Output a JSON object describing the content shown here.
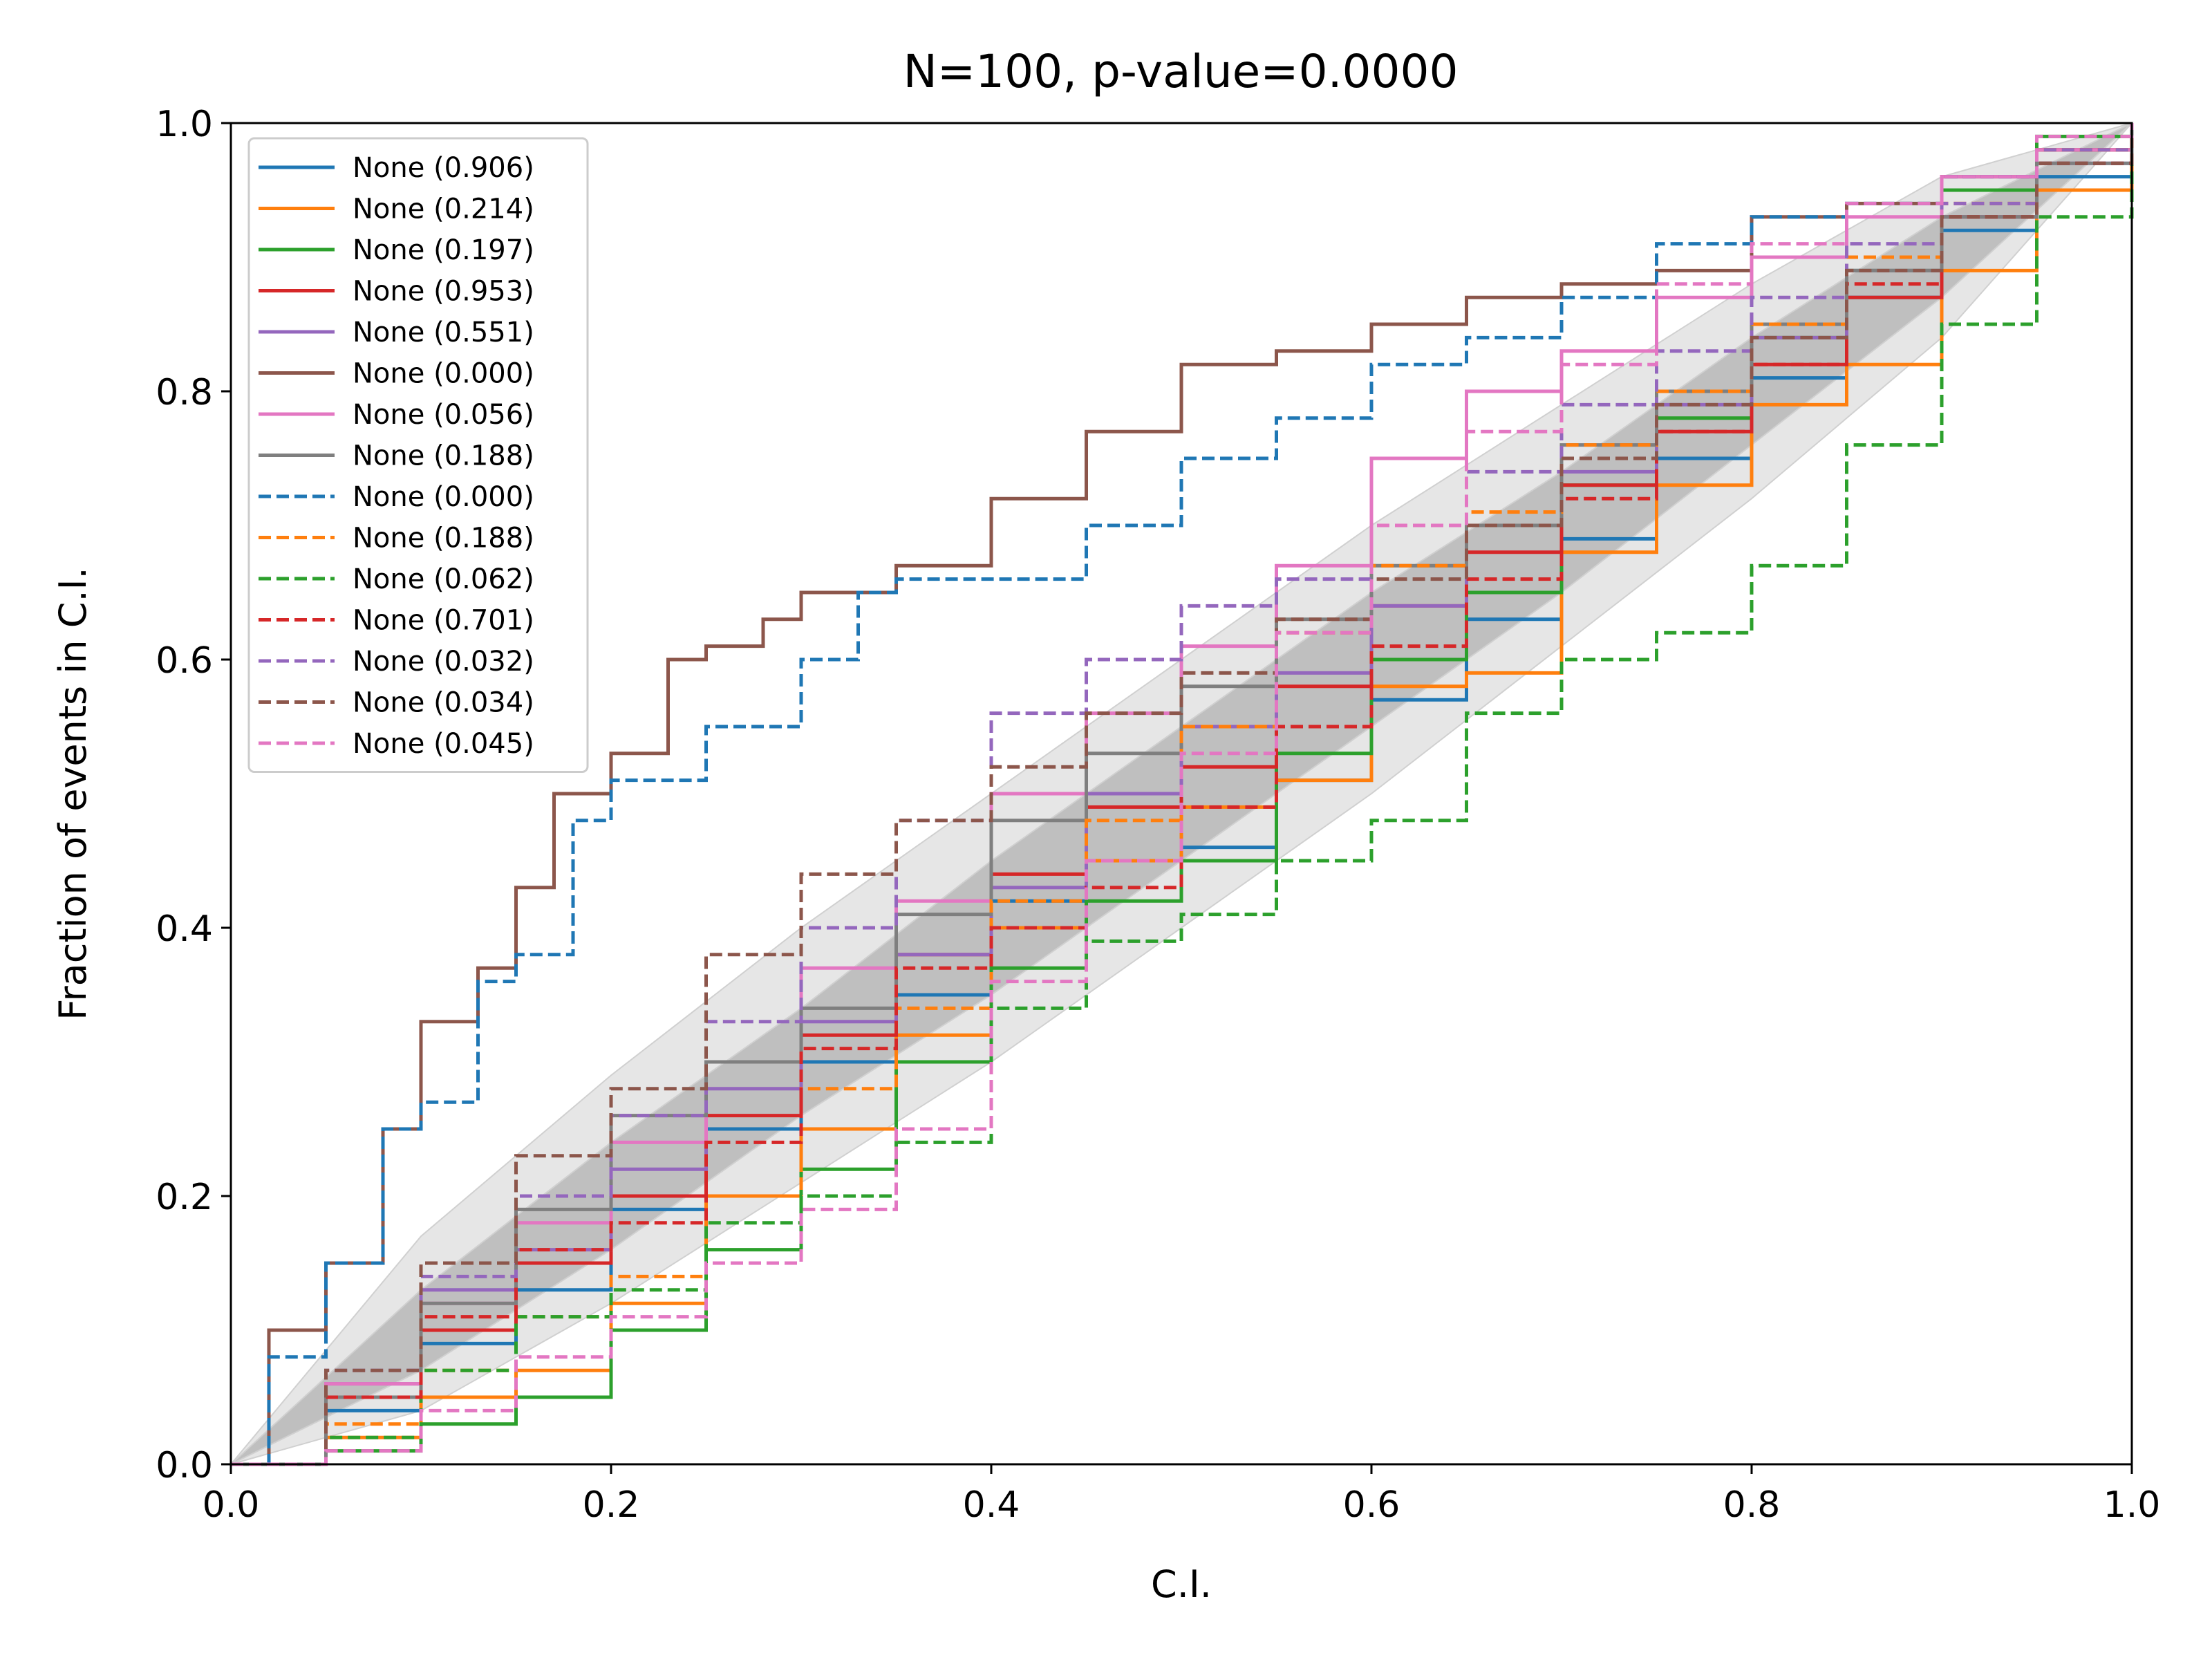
{
  "chart_data": {
    "type": "line",
    "title": "N=100, p-value=0.0000",
    "xlabel": "C.I.",
    "ylabel": "Fraction of events in C.I.",
    "xlim": [
      0,
      1
    ],
    "ylim": [
      0,
      1
    ],
    "xticks": [
      "0.0",
      "0.2",
      "0.4",
      "0.6",
      "0.8",
      "1.0"
    ],
    "yticks": [
      "0.0",
      "0.2",
      "0.4",
      "0.6",
      "0.8",
      "1.0"
    ],
    "grid": false,
    "legend_position": "upper-left",
    "bands": [
      {
        "level": "outer",
        "color": "#e6e6e6",
        "x": [
          0,
          0.1,
          0.2,
          0.3,
          0.4,
          0.5,
          0.6,
          0.7,
          0.8,
          0.9,
          1.0
        ],
        "lower": [
          0,
          0.04,
          0.12,
          0.21,
          0.3,
          0.4,
          0.5,
          0.61,
          0.72,
          0.84,
          1.0
        ],
        "upper": [
          0,
          0.17,
          0.29,
          0.4,
          0.5,
          0.6,
          0.7,
          0.79,
          0.88,
          0.96,
          1.0
        ]
      },
      {
        "level": "inner",
        "color": "#bfbfbf",
        "x": [
          0,
          0.1,
          0.2,
          0.3,
          0.4,
          0.5,
          0.6,
          0.7,
          0.8,
          0.9,
          1.0
        ],
        "lower": [
          0,
          0.07,
          0.16,
          0.26,
          0.35,
          0.45,
          0.55,
          0.65,
          0.76,
          0.87,
          1.0
        ],
        "upper": [
          0,
          0.13,
          0.24,
          0.34,
          0.45,
          0.55,
          0.65,
          0.74,
          0.84,
          0.93,
          1.0
        ]
      }
    ],
    "series": [
      {
        "name": "None (0.906)",
        "color": "#1f77b4",
        "dash": "solid",
        "x": [
          0,
          0.05,
          0.1,
          0.15,
          0.2,
          0.25,
          0.3,
          0.35,
          0.4,
          0.45,
          0.5,
          0.55,
          0.6,
          0.65,
          0.7,
          0.75,
          0.8,
          0.85,
          0.9,
          0.95,
          1.0
        ],
        "y": [
          0,
          0.04,
          0.09,
          0.13,
          0.19,
          0.25,
          0.3,
          0.35,
          0.42,
          0.45,
          0.46,
          0.51,
          0.57,
          0.63,
          0.69,
          0.75,
          0.81,
          0.87,
          0.92,
          0.96,
          1.0
        ]
      },
      {
        "name": "None (0.214)",
        "color": "#ff7f0e",
        "dash": "solid",
        "x": [
          0,
          0.05,
          0.1,
          0.15,
          0.2,
          0.25,
          0.3,
          0.35,
          0.4,
          0.45,
          0.5,
          0.55,
          0.6,
          0.65,
          0.7,
          0.75,
          0.8,
          0.85,
          0.9,
          0.95,
          1.0
        ],
        "y": [
          0,
          0.02,
          0.05,
          0.07,
          0.12,
          0.2,
          0.25,
          0.32,
          0.4,
          0.45,
          0.49,
          0.51,
          0.58,
          0.59,
          0.68,
          0.73,
          0.79,
          0.82,
          0.89,
          0.95,
          1.0
        ]
      },
      {
        "name": "None (0.197)",
        "color": "#2ca02c",
        "dash": "solid",
        "x": [
          0,
          0.05,
          0.1,
          0.15,
          0.2,
          0.25,
          0.3,
          0.35,
          0.4,
          0.45,
          0.5,
          0.55,
          0.6,
          0.65,
          0.7,
          0.75,
          0.8,
          0.85,
          0.9,
          0.95,
          1.0
        ],
        "y": [
          0,
          0.01,
          0.03,
          0.05,
          0.1,
          0.16,
          0.22,
          0.3,
          0.37,
          0.42,
          0.45,
          0.53,
          0.6,
          0.65,
          0.73,
          0.78,
          0.84,
          0.89,
          0.95,
          0.99,
          1.0
        ]
      },
      {
        "name": "None (0.953)",
        "color": "#d62728",
        "dash": "solid",
        "x": [
          0,
          0.05,
          0.1,
          0.15,
          0.2,
          0.25,
          0.3,
          0.35,
          0.4,
          0.45,
          0.5,
          0.55,
          0.6,
          0.65,
          0.7,
          0.75,
          0.8,
          0.85,
          0.9,
          0.95,
          1.0
        ],
        "y": [
          0,
          0.05,
          0.1,
          0.15,
          0.2,
          0.26,
          0.32,
          0.38,
          0.44,
          0.49,
          0.52,
          0.58,
          0.64,
          0.68,
          0.73,
          0.77,
          0.82,
          0.87,
          0.93,
          0.98,
          1.0
        ]
      },
      {
        "name": "None (0.551)",
        "color": "#9467bd",
        "dash": "solid",
        "x": [
          0,
          0.05,
          0.1,
          0.15,
          0.2,
          0.25,
          0.3,
          0.35,
          0.4,
          0.45,
          0.5,
          0.55,
          0.6,
          0.65,
          0.7,
          0.75,
          0.8,
          0.85,
          0.9,
          0.95,
          1.0
        ],
        "y": [
          0,
          0.06,
          0.13,
          0.16,
          0.22,
          0.28,
          0.33,
          0.38,
          0.43,
          0.5,
          0.55,
          0.59,
          0.64,
          0.7,
          0.74,
          0.79,
          0.84,
          0.89,
          0.93,
          0.97,
          1.0
        ]
      },
      {
        "name": "None (0.000)",
        "color": "#8c564b",
        "dash": "solid",
        "x": [
          0,
          0.02,
          0.05,
          0.08,
          0.1,
          0.13,
          0.15,
          0.17,
          0.2,
          0.23,
          0.25,
          0.28,
          0.3,
          0.35,
          0.4,
          0.45,
          0.5,
          0.55,
          0.6,
          0.65,
          0.7,
          0.75,
          0.8,
          0.85,
          0.9,
          0.95,
          1.0
        ],
        "y": [
          0,
          0.1,
          0.15,
          0.25,
          0.33,
          0.37,
          0.43,
          0.5,
          0.53,
          0.6,
          0.61,
          0.63,
          0.65,
          0.67,
          0.72,
          0.77,
          0.82,
          0.83,
          0.85,
          0.87,
          0.88,
          0.89,
          0.93,
          0.94,
          0.96,
          0.98,
          1.0
        ]
      },
      {
        "name": "None (0.056)",
        "color": "#e377c2",
        "dash": "solid",
        "x": [
          0,
          0.05,
          0.1,
          0.15,
          0.2,
          0.25,
          0.3,
          0.35,
          0.4,
          0.45,
          0.5,
          0.55,
          0.6,
          0.65,
          0.7,
          0.75,
          0.8,
          0.85,
          0.9,
          0.95,
          1.0
        ],
        "y": [
          0,
          0.06,
          0.12,
          0.18,
          0.24,
          0.3,
          0.37,
          0.42,
          0.5,
          0.56,
          0.61,
          0.67,
          0.75,
          0.8,
          0.83,
          0.87,
          0.9,
          0.93,
          0.96,
          0.98,
          1.0
        ]
      },
      {
        "name": "None (0.188)",
        "color": "#7f7f7f",
        "dash": "solid",
        "x": [
          0,
          0.05,
          0.1,
          0.15,
          0.2,
          0.25,
          0.3,
          0.35,
          0.4,
          0.45,
          0.5,
          0.55,
          0.6,
          0.65,
          0.7,
          0.75,
          0.8,
          0.85,
          0.9,
          0.95,
          1.0
        ],
        "y": [
          0,
          0.05,
          0.12,
          0.19,
          0.26,
          0.3,
          0.34,
          0.41,
          0.48,
          0.53,
          0.58,
          0.63,
          0.67,
          0.7,
          0.76,
          0.8,
          0.85,
          0.89,
          0.93,
          0.97,
          1.0
        ]
      },
      {
        "name": "None (0.000)",
        "color": "#1f77b4",
        "dash": "dashed",
        "x": [
          0,
          0.02,
          0.05,
          0.08,
          0.1,
          0.13,
          0.15,
          0.18,
          0.2,
          0.25,
          0.3,
          0.33,
          0.35,
          0.4,
          0.45,
          0.5,
          0.55,
          0.6,
          0.65,
          0.7,
          0.75,
          0.8,
          0.85,
          0.9,
          0.95,
          1.0
        ],
        "y": [
          0,
          0.08,
          0.15,
          0.25,
          0.27,
          0.36,
          0.38,
          0.48,
          0.51,
          0.55,
          0.6,
          0.65,
          0.66,
          0.66,
          0.7,
          0.75,
          0.78,
          0.82,
          0.84,
          0.87,
          0.91,
          0.93,
          0.94,
          0.96,
          0.97,
          1.0
        ]
      },
      {
        "name": "None (0.188)",
        "color": "#ff7f0e",
        "dash": "dashed",
        "x": [
          0,
          0.05,
          0.1,
          0.15,
          0.2,
          0.25,
          0.3,
          0.35,
          0.4,
          0.45,
          0.5,
          0.55,
          0.6,
          0.65,
          0.7,
          0.75,
          0.8,
          0.85,
          0.9,
          0.95,
          1.0
        ],
        "y": [
          0,
          0.03,
          0.07,
          0.11,
          0.14,
          0.2,
          0.28,
          0.34,
          0.42,
          0.48,
          0.55,
          0.62,
          0.67,
          0.71,
          0.76,
          0.8,
          0.85,
          0.9,
          0.94,
          0.98,
          1.0
        ]
      },
      {
        "name": "None (0.062)",
        "color": "#2ca02c",
        "dash": "dashed",
        "x": [
          0,
          0.05,
          0.1,
          0.15,
          0.2,
          0.25,
          0.3,
          0.35,
          0.4,
          0.45,
          0.5,
          0.55,
          0.6,
          0.65,
          0.7,
          0.75,
          0.8,
          0.85,
          0.9,
          0.95,
          1.0
        ],
        "y": [
          0,
          0.02,
          0.07,
          0.11,
          0.13,
          0.18,
          0.2,
          0.24,
          0.34,
          0.39,
          0.41,
          0.45,
          0.48,
          0.56,
          0.6,
          0.62,
          0.67,
          0.76,
          0.85,
          0.93,
          1.0
        ]
      },
      {
        "name": "None (0.701)",
        "color": "#d62728",
        "dash": "dashed",
        "x": [
          0,
          0.05,
          0.1,
          0.15,
          0.2,
          0.25,
          0.3,
          0.35,
          0.4,
          0.45,
          0.5,
          0.55,
          0.6,
          0.65,
          0.7,
          0.75,
          0.8,
          0.85,
          0.9,
          0.95,
          1.0
        ],
        "y": [
          0,
          0.05,
          0.11,
          0.16,
          0.18,
          0.24,
          0.31,
          0.37,
          0.4,
          0.43,
          0.49,
          0.55,
          0.61,
          0.66,
          0.72,
          0.77,
          0.82,
          0.88,
          0.93,
          0.97,
          1.0
        ]
      },
      {
        "name": "None (0.032)",
        "color": "#9467bd",
        "dash": "dashed",
        "x": [
          0,
          0.05,
          0.1,
          0.15,
          0.2,
          0.25,
          0.3,
          0.35,
          0.4,
          0.45,
          0.5,
          0.55,
          0.6,
          0.65,
          0.7,
          0.75,
          0.8,
          0.85,
          0.9,
          0.95,
          1.0
        ],
        "y": [
          0,
          0.07,
          0.14,
          0.2,
          0.26,
          0.33,
          0.4,
          0.48,
          0.56,
          0.6,
          0.64,
          0.66,
          0.7,
          0.74,
          0.79,
          0.83,
          0.87,
          0.91,
          0.94,
          0.98,
          1.0
        ]
      },
      {
        "name": "None (0.034)",
        "color": "#8c564b",
        "dash": "dashed",
        "x": [
          0,
          0.05,
          0.1,
          0.15,
          0.2,
          0.25,
          0.3,
          0.35,
          0.4,
          0.45,
          0.5,
          0.55,
          0.6,
          0.65,
          0.7,
          0.75,
          0.8,
          0.85,
          0.9,
          0.95,
          1.0
        ],
        "y": [
          0,
          0.07,
          0.15,
          0.23,
          0.28,
          0.38,
          0.44,
          0.48,
          0.52,
          0.56,
          0.59,
          0.63,
          0.66,
          0.7,
          0.75,
          0.79,
          0.84,
          0.89,
          0.93,
          0.97,
          1.0
        ]
      },
      {
        "name": "None (0.045)",
        "color": "#e377c2",
        "dash": "dashed",
        "x": [
          0,
          0.05,
          0.1,
          0.15,
          0.2,
          0.25,
          0.3,
          0.35,
          0.4,
          0.45,
          0.5,
          0.55,
          0.6,
          0.65,
          0.7,
          0.75,
          0.8,
          0.85,
          0.9,
          0.95,
          1.0
        ],
        "y": [
          0,
          0.01,
          0.04,
          0.08,
          0.11,
          0.15,
          0.19,
          0.25,
          0.36,
          0.45,
          0.53,
          0.62,
          0.7,
          0.77,
          0.82,
          0.88,
          0.91,
          0.94,
          0.96,
          0.99,
          1.0
        ]
      }
    ]
  }
}
